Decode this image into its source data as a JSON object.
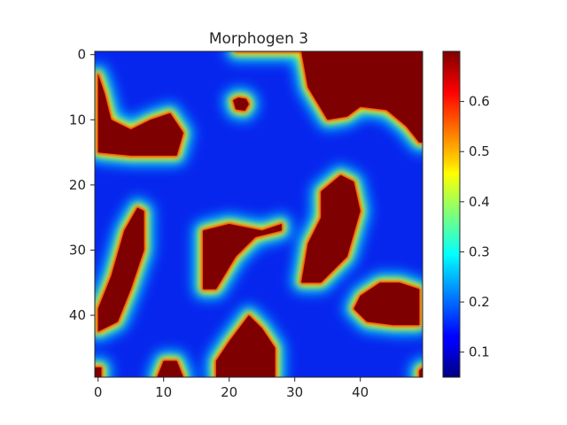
{
  "chart_data": {
    "type": "heatmap",
    "title": "Morphogen 3",
    "colormap": "jet",
    "grid": false,
    "x_ticks": [
      0,
      10,
      20,
      30,
      40
    ],
    "y_ticks": [
      0,
      10,
      20,
      30,
      40
    ],
    "x_tick_labels": [
      "0",
      "10",
      "20",
      "30",
      "40"
    ],
    "y_tick_labels": [
      "0",
      "10",
      "20",
      "30",
      "40"
    ],
    "xlim": [
      -0.5,
      49.5
    ],
    "ylim": [
      49.5,
      -0.5
    ],
    "colorbar": {
      "range": [
        0.05,
        0.7
      ],
      "ticks": [
        0.1,
        0.2,
        0.3,
        0.4,
        0.5,
        0.6
      ],
      "tick_labels": [
        "0.1",
        "0.2",
        "0.3",
        "0.4",
        "0.5",
        "0.6"
      ],
      "placement": "right"
    },
    "low_value": 0.1,
    "high_value": 0.7,
    "high_regions": [
      {
        "polygon": [
          [
            0,
            3
          ],
          [
            0,
            15
          ],
          [
            5,
            15.5
          ],
          [
            12,
            15.5
          ],
          [
            13,
            12
          ],
          [
            11,
            9
          ],
          [
            8,
            10
          ],
          [
            5,
            11.5
          ],
          [
            2,
            10
          ],
          [
            1,
            6
          ]
        ]
      },
      {
        "polygon": [
          [
            21,
            -0.5
          ],
          [
            31,
            -0.5
          ],
          [
            32,
            5
          ],
          [
            35,
            10
          ],
          [
            38,
            9.5
          ],
          [
            40,
            8
          ],
          [
            44,
            8.5
          ],
          [
            47,
            11
          ],
          [
            49,
            13.5
          ],
          [
            49.5,
            13.5
          ],
          [
            49.5,
            -0.5
          ]
        ]
      },
      {
        "polygon": [
          [
            34,
            21
          ],
          [
            37,
            18.5
          ],
          [
            39,
            19.5
          ],
          [
            40,
            24
          ],
          [
            38,
            31
          ],
          [
            34,
            35
          ],
          [
            31,
            35
          ],
          [
            32,
            29
          ],
          [
            34,
            25
          ]
        ]
      },
      {
        "polygon": [
          [
            0,
            39
          ],
          [
            2,
            34
          ],
          [
            4,
            27
          ],
          [
            6,
            23.5
          ],
          [
            7,
            24
          ],
          [
            7,
            30
          ],
          [
            5,
            36
          ],
          [
            3,
            41
          ],
          [
            0,
            42.5
          ]
        ]
      },
      {
        "polygon": [
          [
            16,
            27
          ],
          [
            20,
            26
          ],
          [
            25,
            27
          ],
          [
            28,
            26
          ],
          [
            28,
            27
          ],
          [
            24,
            28
          ],
          [
            21,
            31
          ],
          [
            18,
            36
          ],
          [
            16,
            36
          ],
          [
            16,
            31
          ]
        ]
      },
      {
        "polygon": [
          [
            40,
            37
          ],
          [
            43,
            35
          ],
          [
            46,
            35
          ],
          [
            49,
            36
          ],
          [
            49,
            41.5
          ],
          [
            45,
            41.5
          ],
          [
            41,
            41
          ],
          [
            39,
            39
          ]
        ]
      },
      {
        "polygon": [
          [
            18,
            49.5
          ],
          [
            18,
            47
          ],
          [
            20,
            44
          ],
          [
            23,
            40
          ],
          [
            25,
            42
          ],
          [
            27,
            45
          ],
          [
            27,
            49.5
          ]
        ]
      },
      {
        "polygon": [
          [
            9,
            49.5
          ],
          [
            10,
            47
          ],
          [
            12,
            47
          ],
          [
            13,
            49.5
          ]
        ]
      },
      {
        "polygon": [
          [
            20.6,
            7
          ],
          [
            21.4,
            6.6
          ],
          [
            22.6,
            6.8
          ],
          [
            23,
            7.6
          ],
          [
            22.4,
            8.6
          ],
          [
            21,
            8.4
          ]
        ]
      },
      {
        "polygon": [
          [
            48.5,
            -0.5
          ],
          [
            49.5,
            -0.5
          ],
          [
            49.5,
            1.5
          ],
          [
            49,
            1
          ]
        ]
      },
      {
        "polygon": [
          [
            49,
            48.5
          ],
          [
            49.5,
            48
          ],
          [
            49.5,
            49.5
          ],
          [
            49,
            49.5
          ]
        ]
      },
      {
        "polygon": [
          [
            -0.5,
            48
          ],
          [
            0.5,
            48
          ],
          [
            0.5,
            49.5
          ],
          [
            -0.5,
            49.5
          ]
        ]
      }
    ]
  }
}
